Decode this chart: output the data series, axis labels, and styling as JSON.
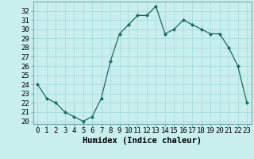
{
  "x": [
    0,
    1,
    2,
    3,
    4,
    5,
    6,
    7,
    8,
    9,
    10,
    11,
    12,
    13,
    14,
    15,
    16,
    17,
    18,
    19,
    20,
    21,
    22,
    23
  ],
  "y": [
    24.0,
    22.5,
    22.0,
    21.0,
    20.5,
    20.0,
    20.5,
    22.5,
    26.5,
    29.5,
    30.5,
    31.5,
    31.5,
    32.5,
    29.5,
    30.0,
    31.0,
    30.5,
    30.0,
    29.5,
    29.5,
    28.0,
    26.0,
    22.0
  ],
  "line_color": "#1a6b5e",
  "marker": "D",
  "marker_size": 2.0,
  "bg_color": "#c8eeee",
  "grid_color": "#a8dcdc",
  "grid_color_major": "#90c8c8",
  "xlabel": "Humidex (Indice chaleur)",
  "ylabel_ticks": [
    20,
    21,
    22,
    23,
    24,
    25,
    26,
    27,
    28,
    29,
    30,
    31,
    32
  ],
  "xlim": [
    -0.5,
    23.5
  ],
  "ylim": [
    19.7,
    33.0
  ],
  "xlabel_fontsize": 7.5,
  "tick_fontsize": 6.5
}
